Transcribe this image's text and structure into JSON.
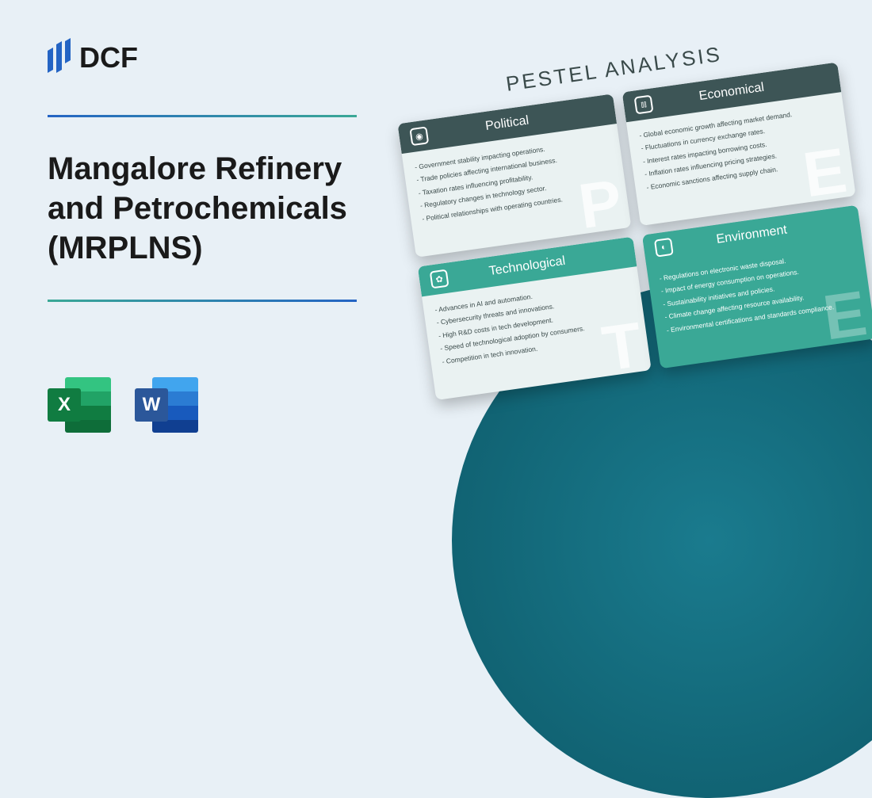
{
  "logo_text": "DCF",
  "title": "Mangalore Refinery and Petrochemicals (MRPLNS)",
  "pestel_title": "PESTEL ANALYSIS",
  "colors": {
    "bg": "#e8f0f6",
    "dark_head": "#3d5556",
    "teal": "#3aa896",
    "circle_inner": "#1a7b8e",
    "circle_outer": "#0d5968",
    "grad_blue": "#2464c4",
    "grad_teal": "#3aa896",
    "xl": "#107c41",
    "wd": "#2b579a"
  },
  "xl_bands": [
    "#33c481",
    "#21a366",
    "#107c41",
    "#0e6d39"
  ],
  "wd_bands": [
    "#41a5ee",
    "#2b7cd3",
    "#185abd",
    "#103f91"
  ],
  "cards": [
    {
      "title": "Political",
      "letter": "P",
      "variant": "light",
      "head": "dark",
      "icon": "shield",
      "items": [
        "- Government stability impacting operations.",
        "- Trade policies affecting international business.",
        "- Taxation rates influencing profitability.",
        "- Regulatory changes in technology sector.",
        "- Political relationships with operating countries."
      ]
    },
    {
      "title": "Economical",
      "letter": "E",
      "variant": "light",
      "head": "dark",
      "icon": "chart",
      "items": [
        "- Global economic growth affecting market demand.",
        "- Fluctuations in currency exchange rates.",
        "- Interest rates impacting borrowing costs.",
        "- Inflation rates influencing pricing strategies.",
        "- Economic sanctions affecting supply chain."
      ]
    },
    {
      "title": "Technological",
      "letter": "T",
      "variant": "light",
      "head": "teal",
      "icon": "gear",
      "items": [
        "- Advances in AI and automation.",
        "- Cybersecurity threats and innovations.",
        "- High R&D costs in tech development.",
        "- Speed of technological adoption by consumers.",
        "- Competition in tech innovation."
      ]
    },
    {
      "title": "Environment",
      "letter": "E",
      "variant": "teal",
      "head": "teal",
      "icon": "leaf",
      "items": [
        "- Regulations on electronic waste disposal.",
        "- Impact of energy consumption on operations.",
        "- Sustainability initiatives and policies.",
        "- Climate change affecting resource availability.",
        "- Environmental certifications and standards compliance."
      ]
    }
  ]
}
